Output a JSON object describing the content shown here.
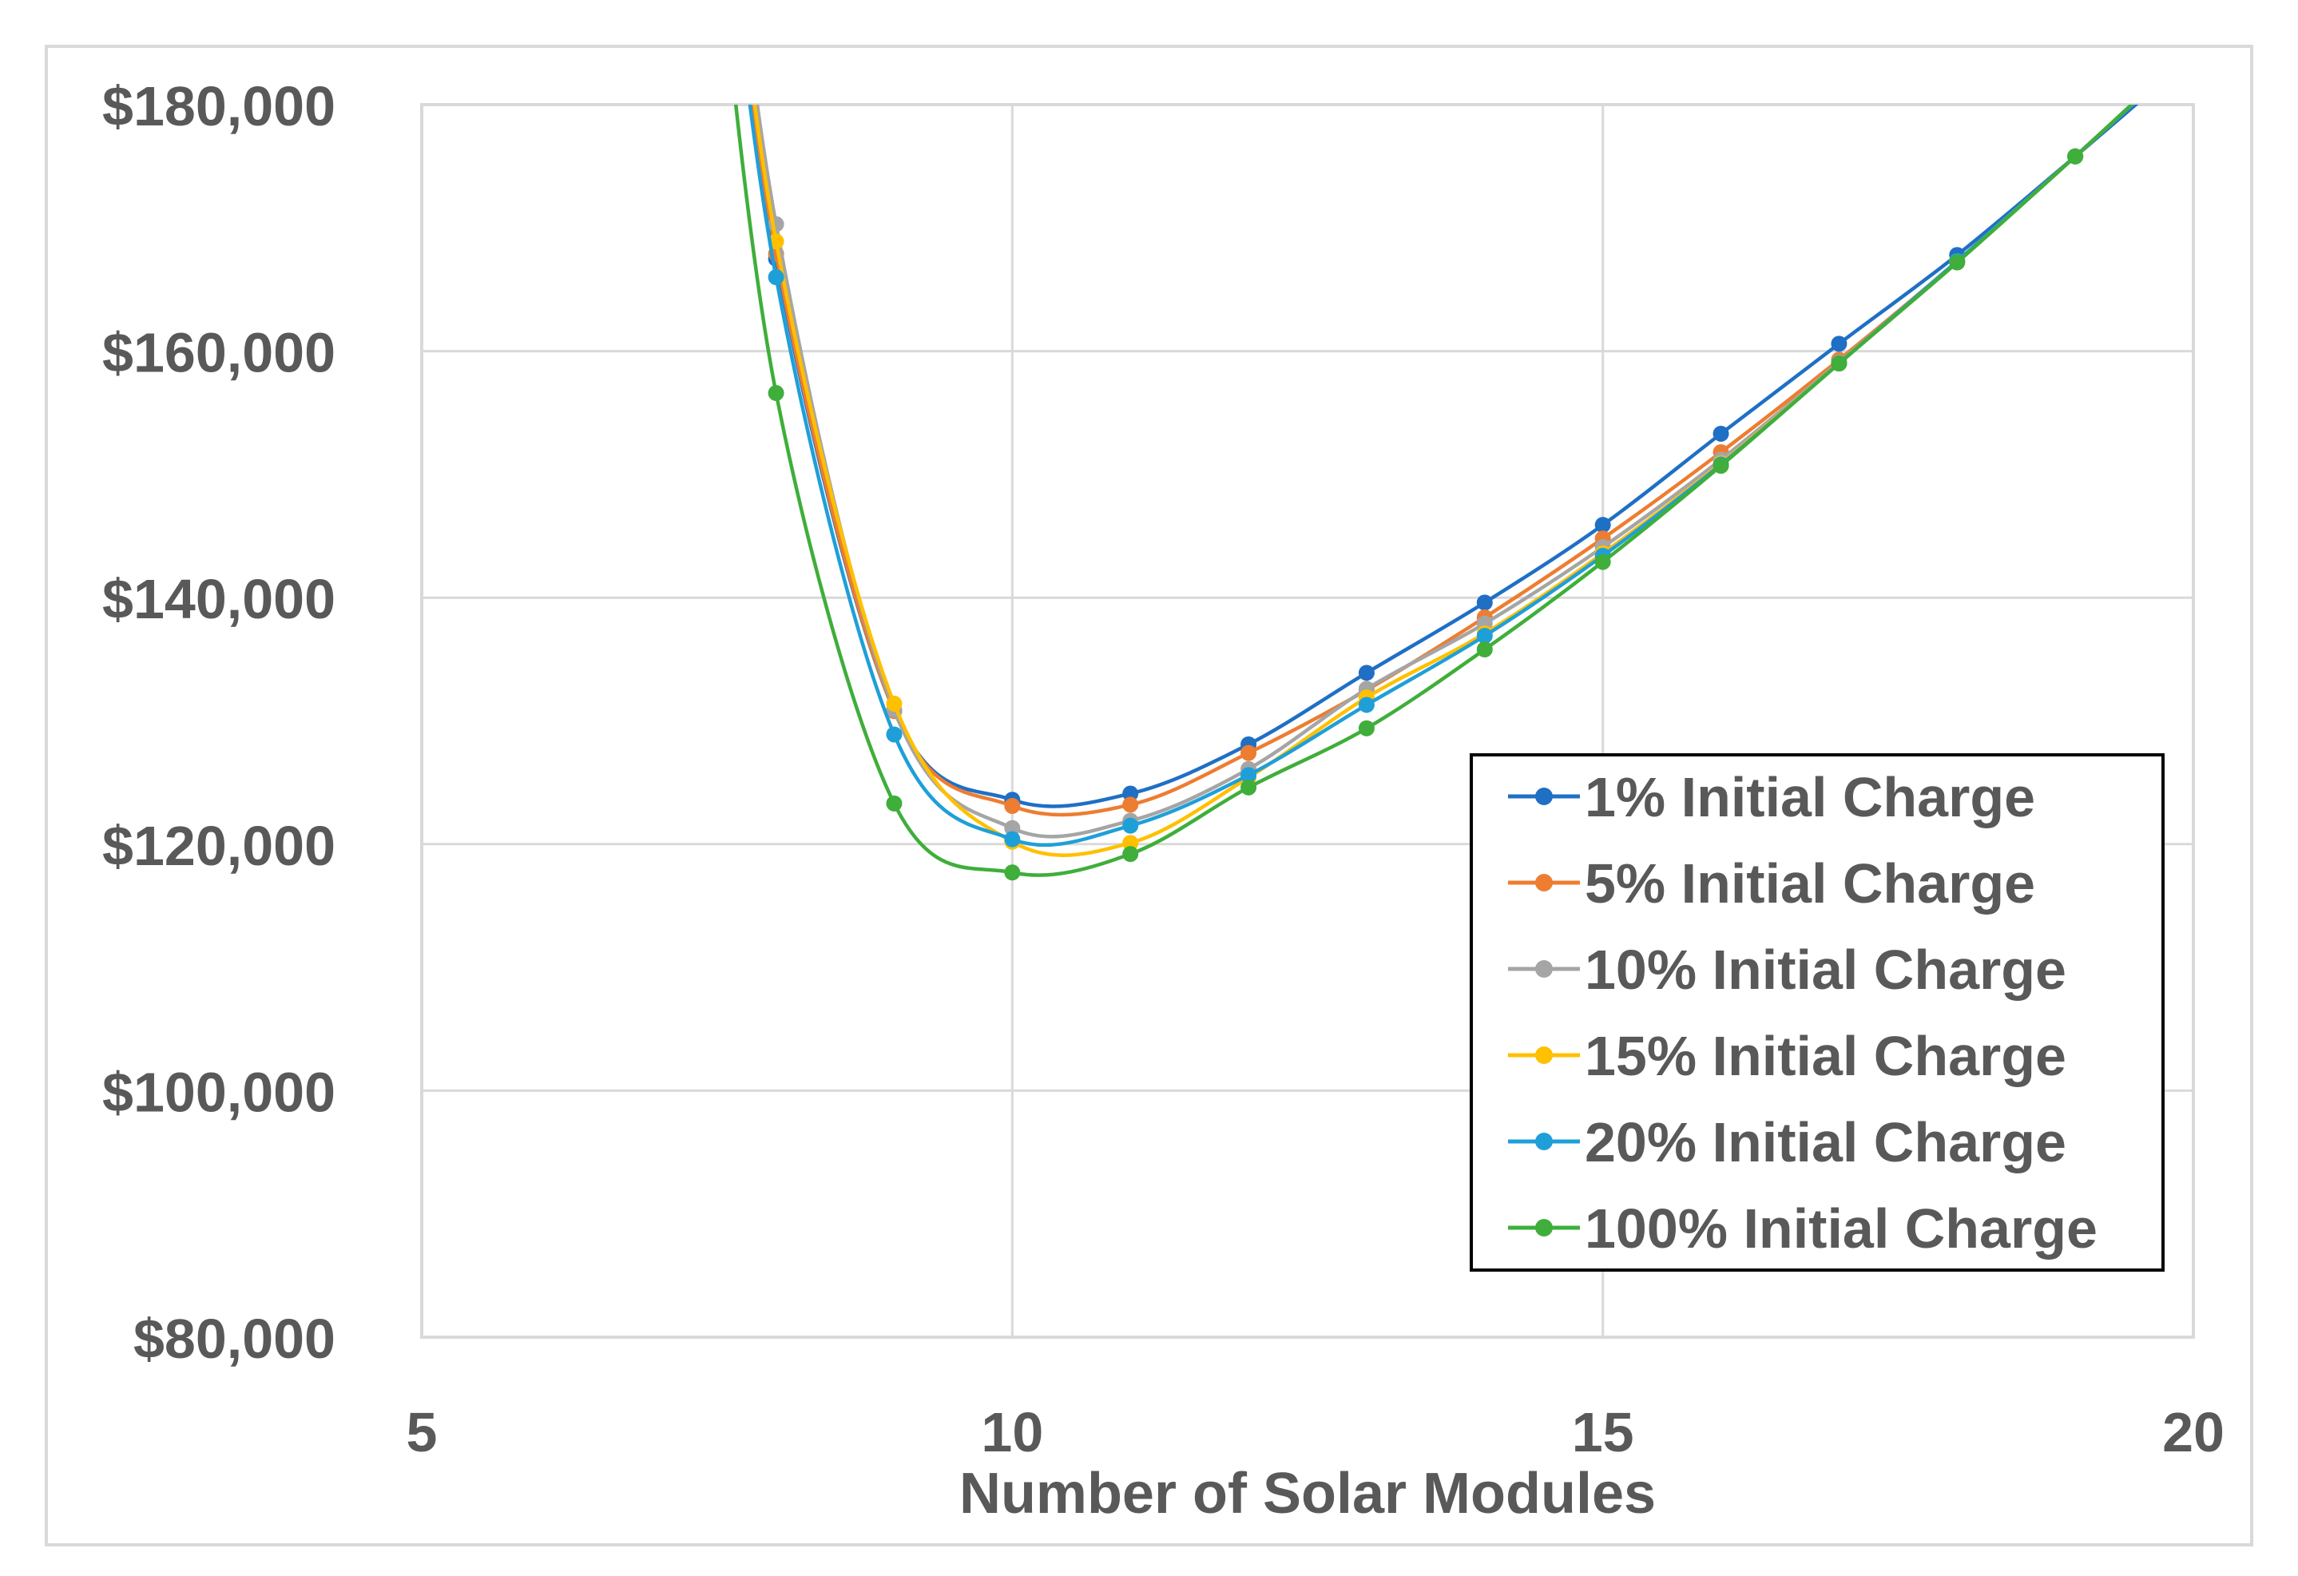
{
  "chart_data": {
    "type": "line",
    "title": "",
    "xlabel": "Number of Solar Modules",
    "ylabel": "",
    "xlim": [
      5,
      20
    ],
    "ylim": [
      80000,
      180000
    ],
    "x_ticks": [
      5,
      10,
      15,
      20
    ],
    "y_ticks": [
      80000,
      100000,
      120000,
      140000,
      160000,
      180000
    ],
    "x_tick_labels": [
      "5",
      "10",
      "15",
      "20"
    ],
    "y_tick_labels": [
      "$80,000",
      "$100,000",
      "$120,000",
      "$140,000",
      "$160,000",
      "$180,000"
    ],
    "grid": true,
    "legend_position": "lower-right-inside",
    "series": [
      {
        "name": "1% Initial Charge",
        "color": "#1F6FC5",
        "x": [
          8,
          9,
          10,
          11,
          12,
          13,
          14,
          15,
          16,
          17,
          18,
          19
        ],
        "y": [
          167500,
          130800,
          123600,
          124100,
          128100,
          133900,
          139600,
          145900,
          153300,
          160600,
          167800,
          175800
        ]
      },
      {
        "name": "5% Initial Charge",
        "color": "#ED7D31",
        "x": [
          8,
          9,
          10,
          11,
          12,
          13,
          14,
          15,
          16,
          17,
          18,
          19
        ],
        "y": [
          167900,
          130800,
          123100,
          123200,
          127400,
          132500,
          138400,
          144800,
          151800,
          159300,
          167300,
          175800
        ]
      },
      {
        "name": "10% Initial Charge",
        "color": "#A5A5A5",
        "x": [
          8,
          9,
          10,
          11,
          12,
          13,
          14,
          15,
          16,
          17,
          18,
          19
        ],
        "y": [
          170300,
          130900,
          121300,
          121900,
          126100,
          132600,
          137900,
          144100,
          151200,
          159100,
          167300,
          175800
        ]
      },
      {
        "name": "15% Initial Charge",
        "color": "#FFC000",
        "x": [
          8,
          9,
          10,
          11,
          12,
          13,
          14,
          15,
          16,
          17,
          18,
          19
        ],
        "y": [
          168900,
          131400,
          120200,
          120100,
          125400,
          131900,
          137100,
          143600,
          150900,
          159000,
          167300,
          175800
        ]
      },
      {
        "name": "20% Initial Charge",
        "color": "#1F9FD8",
        "x": [
          8,
          9,
          10,
          11,
          12,
          13,
          14,
          15,
          16,
          17,
          18,
          19
        ],
        "y": [
          166000,
          128900,
          120400,
          121500,
          125600,
          131300,
          136900,
          143400,
          150800,
          159000,
          167300,
          175800
        ]
      },
      {
        "name": "100% Initial Charge",
        "color": "#3FAE3A",
        "x": [
          8,
          9,
          10,
          11,
          12,
          13,
          14,
          15,
          16,
          17,
          18,
          19
        ],
        "y": [
          156600,
          123300,
          117700,
          119200,
          124600,
          129400,
          135800,
          142900,
          150700,
          159000,
          167200,
          175800
        ]
      }
    ]
  }
}
